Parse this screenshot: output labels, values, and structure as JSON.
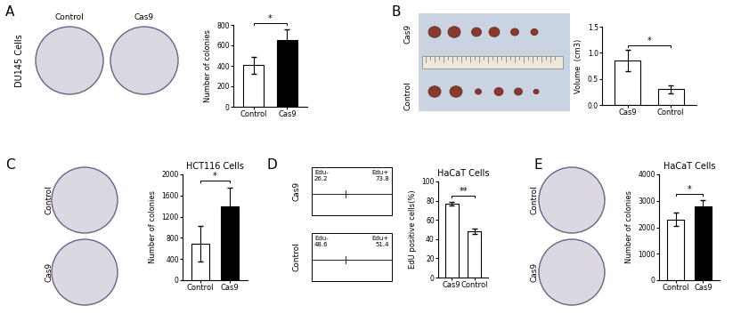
{
  "figure": {
    "panel_labels": [
      "A",
      "B",
      "C",
      "D",
      "E"
    ],
    "images": [
      {
        "panel": "A",
        "cell_line": "DU145 Cells",
        "labels": [
          "Control",
          "Cas9"
        ],
        "kind": "plates",
        "orientation": "row"
      },
      {
        "panel": "B",
        "labels": [
          "Cas9",
          "Control"
        ],
        "kind": "tumors"
      },
      {
        "panel": "C",
        "labels": [
          "Control",
          "Cas9"
        ],
        "kind": "plates",
        "orientation": "column"
      },
      {
        "panel": "D",
        "labels": [
          "Cas9",
          "Control"
        ],
        "kind": "flow",
        "gates": [
          {
            "neg_label": "Edu-",
            "neg": 26.2,
            "pos_label": "Edu+",
            "pos": 73.8
          },
          {
            "neg_label": "Edu-",
            "neg": 48.6,
            "pos_label": "Edu+",
            "pos": 51.4
          }
        ]
      },
      {
        "panel": "E",
        "labels": [
          "Control",
          "Cas9"
        ],
        "kind": "plates",
        "orientation": "column"
      }
    ]
  },
  "chart_data": [
    {
      "type": "bar",
      "panel": "A",
      "categories": [
        "Control",
        "Cas9"
      ],
      "values": [
        405,
        655
      ],
      "errors": [
        80,
        100
      ],
      "colors": [
        "#ffffff",
        "#000000"
      ],
      "y_label": "Number of colonies",
      "ylim": [
        0,
        800
      ],
      "yticks": [
        0,
        200,
        400,
        600,
        800
      ],
      "annotations": [
        "*"
      ]
    },
    {
      "type": "bar",
      "panel": "B",
      "categories": [
        "Cas9",
        "Control"
      ],
      "values": [
        0.85,
        0.3
      ],
      "errors": [
        0.2,
        0.08
      ],
      "colors": [
        "#ffffff",
        "#ffffff"
      ],
      "y_label": "Volume  (cm3)",
      "ylim": [
        0,
        1.5
      ],
      "yticks": [
        {
          "value": 0,
          "label": "0.0"
        },
        {
          "value": 0.5,
          "label": "0.5"
        },
        {
          "value": 1.0,
          "label": "1.0"
        },
        {
          "value": 1.5,
          "label": "1.5"
        }
      ],
      "annotations": [
        "*"
      ]
    },
    {
      "type": "bar",
      "panel": "C",
      "title": "HCT116 Cells",
      "categories": [
        "Control",
        "Cas9"
      ],
      "values": [
        690,
        1390
      ],
      "errors": [
        340,
        350
      ],
      "colors": [
        "#ffffff",
        "#000000"
      ],
      "y_label": "Number of colonies",
      "ylim": [
        0,
        2000
      ],
      "yticks": [
        0,
        400,
        800,
        1200,
        1600,
        2000
      ],
      "annotations": [
        "*"
      ]
    },
    {
      "type": "bar",
      "panel": "D",
      "title": "HaCaT Cells",
      "categories": [
        "Cas9",
        "Control"
      ],
      "values": [
        77,
        48
      ],
      "errors": [
        2,
        3
      ],
      "colors": [
        "#ffffff",
        "#ffffff"
      ],
      "y_label": "EdU positive cells(%)",
      "ylim": [
        0,
        100
      ],
      "yticks": [
        0,
        20,
        40,
        60,
        80,
        100
      ],
      "annotations": [
        "**"
      ]
    },
    {
      "type": "bar",
      "panel": "E",
      "title": "HaCaT Cells",
      "categories": [
        "Control",
        "Cas9"
      ],
      "values": [
        2300,
        2780
      ],
      "errors": [
        250,
        250
      ],
      "colors": [
        "#ffffff",
        "#000000"
      ],
      "y_label": "Number of colonies",
      "ylim": [
        0,
        4000
      ],
      "yticks": [
        0,
        1000,
        2000,
        3000,
        4000
      ],
      "annotations": [
        "*"
      ]
    }
  ]
}
